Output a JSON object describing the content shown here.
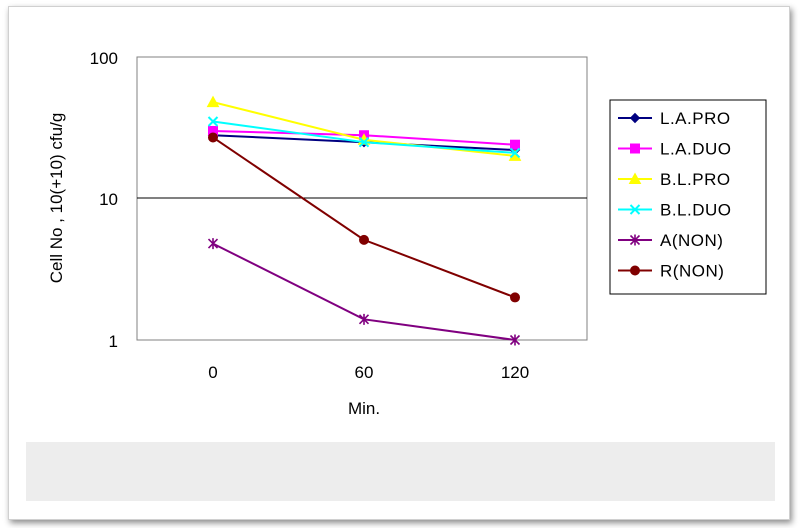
{
  "chart_data": {
    "type": "line",
    "x": [
      0,
      60,
      120
    ],
    "x_tick_labels": [
      "0",
      "60",
      "120"
    ],
    "xlabel": "Min.",
    "ylabel": "Cell No , 10(+10) cfu/g",
    "y_scale": "log",
    "ylim": [
      1,
      100
    ],
    "y_tick_labels": [
      "1",
      "10",
      "100"
    ],
    "grid": "horizontal gridline at 10",
    "legend_position": "right",
    "series": [
      {
        "name": "L.A.PRO",
        "values": [
          28,
          25,
          22
        ],
        "color": "#000080",
        "marker": "diamond"
      },
      {
        "name": "L.A.DUO",
        "values": [
          30,
          28,
          24
        ],
        "color": "#ff00ff",
        "marker": "square"
      },
      {
        "name": "B.L.PRO",
        "values": [
          48,
          26,
          20
        ],
        "color": "#ffff00",
        "marker": "triangle"
      },
      {
        "name": "B.L.DUO",
        "values": [
          35,
          25,
          21
        ],
        "color": "#00ffff",
        "marker": "x"
      },
      {
        "name": "A(NON)",
        "values": [
          4.8,
          1.4,
          1.0
        ],
        "color": "#800080",
        "marker": "asterisk"
      },
      {
        "name": "R(NON)",
        "values": [
          27,
          5.1,
          2.0
        ],
        "color": "#800000",
        "marker": "circle"
      }
    ]
  }
}
